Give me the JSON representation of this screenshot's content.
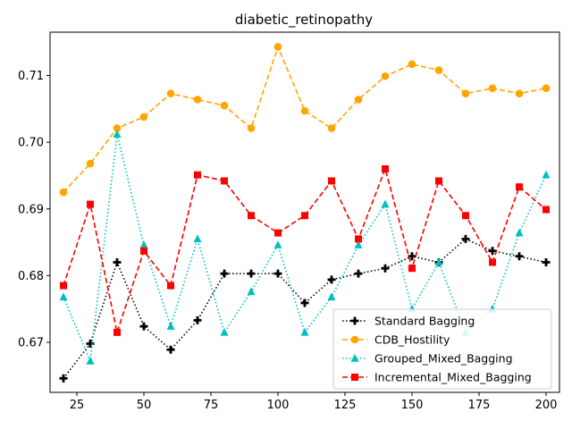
{
  "chart_data": {
    "type": "line",
    "title": "diabetic_retinopathy",
    "xlabel": "",
    "ylabel": "",
    "xlim": [
      15,
      205
    ],
    "ylim": [
      0.6625,
      0.7165
    ],
    "x_ticks": [
      25,
      50,
      75,
      100,
      125,
      150,
      175,
      200
    ],
    "y_ticks": [
      0.67,
      0.68,
      0.69,
      0.7,
      0.71
    ],
    "x_tick_labels": [
      "25",
      "50",
      "75",
      "100",
      "125",
      "150",
      "175",
      "200"
    ],
    "y_tick_labels": [
      "0.67",
      "0.68",
      "0.69",
      "0.70",
      "0.71"
    ],
    "grid": false,
    "legend_position": "lower-right",
    "x": [
      20,
      30,
      40,
      50,
      60,
      70,
      80,
      90,
      100,
      110,
      120,
      130,
      140,
      150,
      160,
      170,
      180,
      190,
      200
    ],
    "series": [
      {
        "name": "Standard Bagging",
        "color": "#000000",
        "linestyle": "dotted",
        "marker": "plus",
        "values": [
          0.6646,
          0.6698,
          0.682,
          0.6724,
          0.6689,
          0.6733,
          0.6803,
          0.6803,
          0.6803,
          0.6759,
          0.6794,
          0.6803,
          0.6811,
          0.6829,
          0.682,
          0.6855,
          0.6837,
          0.6829,
          0.682
        ]
      },
      {
        "name": "CDB_Hostility",
        "color": "#ffa500",
        "linestyle": "dashed",
        "marker": "circle",
        "values": [
          0.6925,
          0.6968,
          0.7021,
          0.7038,
          0.7073,
          0.7064,
          0.7055,
          0.7021,
          0.7143,
          0.7047,
          0.7021,
          0.7064,
          0.7099,
          0.7117,
          0.7108,
          0.7073,
          0.7081,
          0.7073,
          0.7081
        ]
      },
      {
        "name": "Grouped_Mixed_Bagging",
        "color": "#00bfbf",
        "linestyle": "dotted",
        "marker": "triangle",
        "values": [
          0.6768,
          0.6672,
          0.7012,
          0.6846,
          0.6724,
          0.6855,
          0.6715,
          0.6776,
          0.6846,
          0.6715,
          0.6768,
          0.6846,
          0.6907,
          0.675,
          0.682,
          0.6715,
          0.675,
          0.6864,
          0.6951
        ]
      },
      {
        "name": "Incremental_Mixed_Bagging",
        "color": "#ff0000",
        "linestyle": "dashed",
        "marker": "square",
        "values": [
          0.6785,
          0.6907,
          0.6715,
          0.6837,
          0.6785,
          0.6951,
          0.6942,
          0.689,
          0.6864,
          0.689,
          0.6942,
          0.6855,
          0.696,
          0.6811,
          0.6942,
          0.689,
          0.682,
          0.6933,
          0.6899
        ]
      }
    ]
  }
}
